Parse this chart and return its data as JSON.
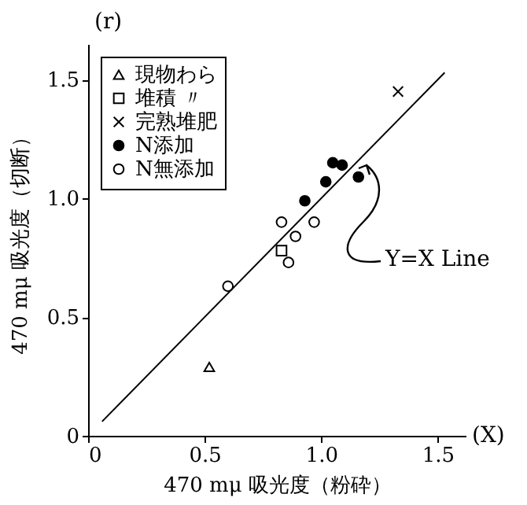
{
  "chart_data": {
    "type": "scatter",
    "xlabel": "470 mμ 吸光度（粉砕）",
    "ylabel": "470 mμ 吸光度（切断）",
    "xlim": [
      0,
      1.62
    ],
    "ylim": [
      0,
      1.65
    ],
    "xticks": [
      0,
      0.5,
      {
        "value": 1,
        "label": "1.0"
      },
      1.5
    ],
    "yticks": [
      0,
      0.5,
      {
        "value": 1,
        "label": "1.0"
      },
      1.5
    ],
    "legend": "top left",
    "series": [
      {
        "name": "現物わら",
        "color": "#000000",
        "marker": "triangle",
        "x": [
          0.52
        ],
        "values": [
          0.29
        ]
      },
      {
        "name": "堆積 〃",
        "color": "#000000",
        "marker": "square",
        "x": [
          0.83
        ],
        "values": [
          0.78
        ]
      },
      {
        "name": "完熟堆肥",
        "color": "#000000",
        "marker": "cross",
        "x": [
          1.33
        ],
        "values": [
          1.45
        ]
      },
      {
        "name": "N添加",
        "color": "#000000",
        "marker": "circle",
        "x": [
          0.93,
          1.02,
          1.05,
          1.09,
          1.16
        ],
        "values": [
          0.99,
          1.07,
          1.15,
          1.14,
          1.09
        ]
      },
      {
        "name": "N無添加",
        "color": "#000000",
        "marker": "circle-open",
        "x": [
          0.6,
          0.83,
          0.89,
          0.97,
          0.86
        ],
        "values": [
          0.63,
          0.9,
          0.84,
          0.9,
          0.73
        ]
      },
      {
        "type": "line",
        "color": "#000000",
        "x": [
          0.06,
          1.53
        ],
        "values": [
          0.06,
          1.53
        ]
      }
    ],
    "annotations": [
      "(r)",
      "(X)",
      "Y=X Line"
    ]
  }
}
